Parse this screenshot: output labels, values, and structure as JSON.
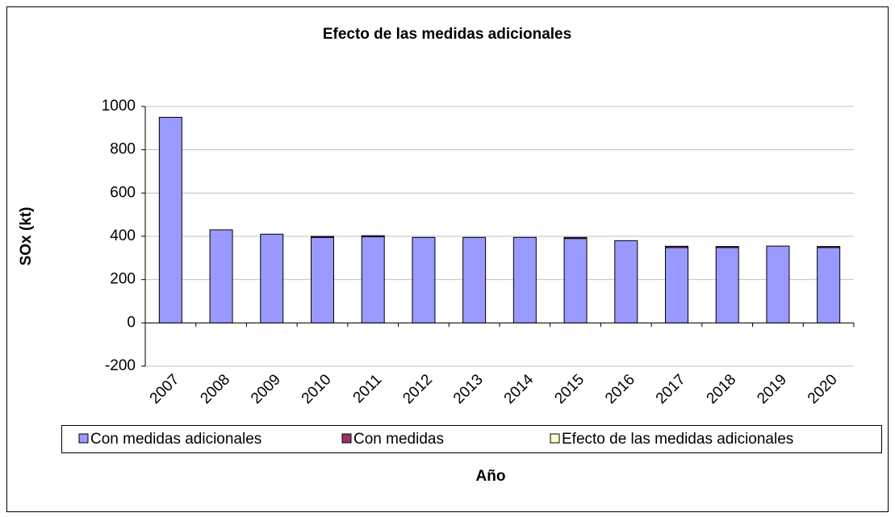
{
  "chart_data": {
    "type": "stacked_bar",
    "title": "Efecto de las medidas adicionales",
    "xlabel": "Año",
    "ylabel": "SOx (kt)",
    "categories": [
      "2007",
      "2008",
      "2009",
      "2010",
      "2011",
      "2012",
      "2013",
      "2014",
      "2015",
      "2016",
      "2017",
      "2018",
      "2019",
      "2020"
    ],
    "series": [
      {
        "name": "Con medidas adicionales",
        "color": "#9999ff",
        "values": [
          950,
          430,
          410,
          395,
          398,
          395,
          395,
          395,
          390,
          380,
          348,
          348,
          355,
          348
        ]
      },
      {
        "name": "Con medidas",
        "color": "#993366",
        "values": [
          0,
          0,
          0,
          5,
          5,
          0,
          0,
          0,
          5,
          0,
          6,
          5,
          0,
          5
        ]
      },
      {
        "name": "Efecto de las medidas adicionales",
        "color": "#ffffcc",
        "values": [
          0,
          0,
          0,
          0,
          0,
          0,
          0,
          0,
          0,
          0,
          0,
          0,
          0,
          0
        ]
      }
    ],
    "ylim": [
      -200,
      1000
    ],
    "yticks": [
      -200,
      0,
      200,
      400,
      600,
      800,
      1000
    ],
    "grid": true,
    "legend": "bottom"
  }
}
